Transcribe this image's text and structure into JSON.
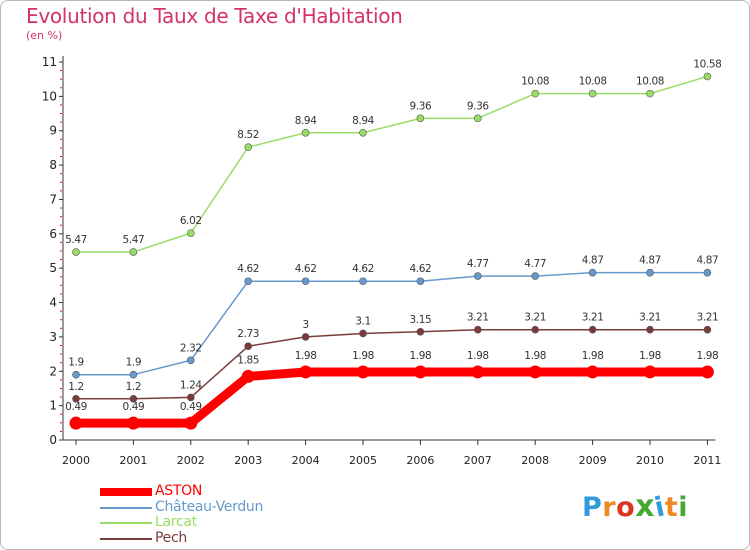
{
  "title": "Evolution du Taux de Taxe d'Habitation",
  "unit_label": "(en %)",
  "colors": {
    "title": "#d4316e",
    "axis": "#333333",
    "tick_marks": "#cc2222"
  },
  "chart_data": {
    "type": "line",
    "title": "Evolution du Taux de Taxe d'Habitation",
    "ylabel": "(en %)",
    "xlabel": "",
    "x": [
      "2000",
      "2001",
      "2002",
      "2003",
      "2004",
      "2005",
      "2006",
      "2007",
      "2008",
      "2009",
      "2010",
      "2011"
    ],
    "ylim": [
      0,
      11
    ],
    "yticks": [
      "0",
      "1",
      "2",
      "3",
      "4",
      "5",
      "6",
      "7",
      "8",
      "9",
      "10",
      "11"
    ],
    "grid": false,
    "legend_position": "bottom-left",
    "series": [
      {
        "name": "ASTON",
        "color": "#ff0000",
        "values": [
          0.49,
          0.49,
          0.49,
          1.85,
          1.98,
          1.98,
          1.98,
          1.98,
          1.98,
          1.98,
          1.98,
          1.98
        ],
        "labels": [
          "0.49",
          "0.49",
          "0.49",
          "1.85",
          "1.98",
          "1.98",
          "1.98",
          "1.98",
          "1.98",
          "1.98",
          "1.98",
          "1.98"
        ]
      },
      {
        "name": "Château-Verdun",
        "color": "#6699cc",
        "values": [
          1.9,
          1.9,
          2.32,
          4.62,
          4.62,
          4.62,
          4.62,
          4.77,
          4.77,
          4.87,
          4.87,
          4.87
        ],
        "labels": [
          "1.9",
          "1.9",
          "2.32",
          "4.62",
          "4.62",
          "4.62",
          "4.62",
          "4.77",
          "4.77",
          "4.87",
          "4.87",
          "4.87"
        ]
      },
      {
        "name": "Larcat",
        "color": "#99dd66",
        "values": [
          5.47,
          5.47,
          6.02,
          8.52,
          8.94,
          8.94,
          9.36,
          9.36,
          10.08,
          10.08,
          10.08,
          10.58
        ],
        "labels": [
          "5.47",
          "5.47",
          "6.02",
          "8.52",
          "8.94",
          "8.94",
          "9.36",
          "9.36",
          "10.08",
          "10.08",
          "10.08",
          "10.58"
        ]
      },
      {
        "name": "Pech",
        "color": "#7a3b3b",
        "values": [
          1.2,
          1.2,
          1.24,
          2.73,
          3,
          3.1,
          3.15,
          3.21,
          3.21,
          3.21,
          3.21,
          3.21
        ],
        "labels": [
          "1.2",
          "1.2",
          "1.24",
          "2.73",
          "3",
          "3.1",
          "3.15",
          "3.21",
          "3.21",
          "3.21",
          "3.21",
          "3.21"
        ]
      }
    ]
  },
  "legend": {
    "items": [
      {
        "label": "ASTON",
        "color": "#ff0000"
      },
      {
        "label": "Château-Verdun",
        "color": "#6699cc"
      },
      {
        "label": "Larcat",
        "color": "#99dd66"
      },
      {
        "label": "Pech",
        "color": "#7a3b3b"
      }
    ]
  },
  "logo": {
    "text": "Proxiti",
    "letter_colors": [
      "#3399dd",
      "#ee8822",
      "#dd3322",
      "#44aa33",
      "#3399dd",
      "#ee8822",
      "#44aa33"
    ]
  }
}
